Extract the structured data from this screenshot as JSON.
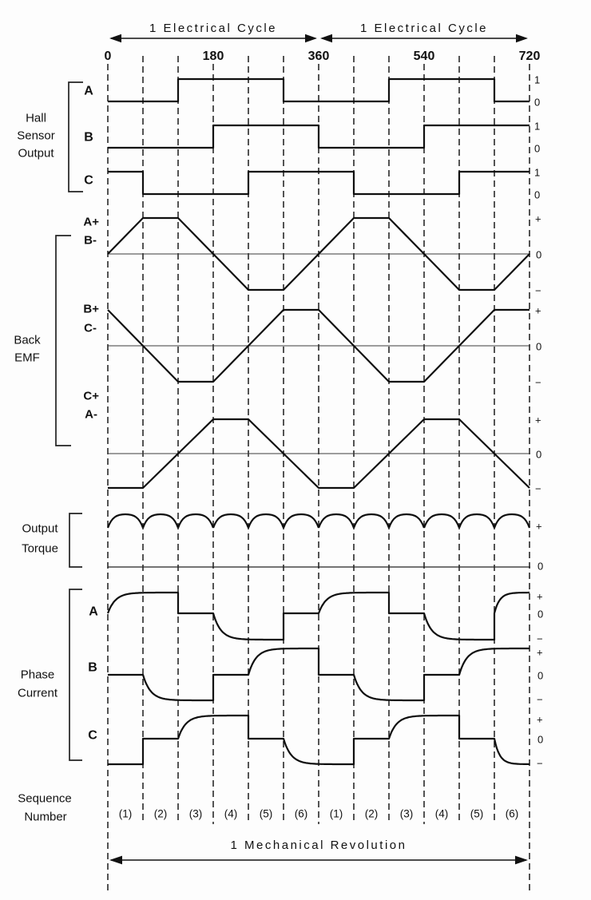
{
  "top": {
    "electrical_cycle_left": "1 Electrical Cycle",
    "electrical_cycle_right": "1 Electrical Cycle"
  },
  "axis": {
    "total_degrees": 720,
    "grid_step_degrees": 60,
    "degree_labels": [
      {
        "deg": 0,
        "text": "0"
      },
      {
        "deg": 180,
        "text": "180"
      },
      {
        "deg": 360,
        "text": "360"
      },
      {
        "deg": 540,
        "text": "540"
      },
      {
        "deg": 720,
        "text": "720"
      }
    ]
  },
  "sections": {
    "hall": {
      "title_lines": [
        "Hall",
        "Sensor",
        "Output"
      ],
      "rows": [
        {
          "id": "hall-a",
          "label": "A",
          "levels": [
            "1",
            "0"
          ],
          "wave": [
            [
              0,
              0
            ],
            [
              120,
              1
            ],
            [
              300,
              0
            ],
            [
              480,
              1
            ],
            [
              660,
              0
            ]
          ]
        },
        {
          "id": "hall-b",
          "label": "B",
          "levels": [
            "1",
            "0"
          ],
          "wave": [
            [
              0,
              0
            ],
            [
              180,
              1
            ],
            [
              360,
              0
            ],
            [
              540,
              1
            ]
          ]
        },
        {
          "id": "hall-c",
          "label": "C",
          "levels": [
            "1",
            "0"
          ],
          "wave": [
            [
              0,
              1
            ],
            [
              60,
              0
            ],
            [
              240,
              1
            ],
            [
              420,
              0
            ],
            [
              600,
              1
            ]
          ]
        }
      ]
    },
    "bemf": {
      "title_lines": [
        "Back",
        "EMF"
      ],
      "rows": [
        {
          "id": "bemf-ab",
          "label_top": "A+",
          "label_bottom": "B-",
          "levels": [
            "+",
            "0",
            "−"
          ],
          "wave": [
            [
              0,
              0
            ],
            [
              60,
              1
            ],
            [
              120,
              1
            ],
            [
              240,
              -1
            ],
            [
              300,
              -1
            ],
            [
              420,
              1
            ],
            [
              480,
              1
            ],
            [
              600,
              -1
            ],
            [
              660,
              -1
            ],
            [
              720,
              0
            ]
          ]
        },
        {
          "id": "bemf-bc",
          "label_top": "B+",
          "label_bottom": "C-",
          "levels": [
            "+",
            "0",
            "−"
          ],
          "wave": [
            [
              0,
              1
            ],
            [
              120,
              -1
            ],
            [
              180,
              -1
            ],
            [
              300,
              1
            ],
            [
              360,
              1
            ],
            [
              480,
              -1
            ],
            [
              540,
              -1
            ],
            [
              660,
              1
            ],
            [
              720,
              1
            ]
          ]
        },
        {
          "id": "bemf-ca",
          "label_top": "C+",
          "label_bottom": "A-",
          "levels": [
            "+",
            "0",
            "−"
          ],
          "wave": [
            [
              0,
              -1
            ],
            [
              60,
              -1
            ],
            [
              180,
              1
            ],
            [
              240,
              1
            ],
            [
              360,
              -1
            ],
            [
              420,
              -1
            ],
            [
              540,
              1
            ],
            [
              600,
              1
            ],
            [
              720,
              -1
            ]
          ]
        }
      ]
    },
    "torque": {
      "title_lines": [
        "Output",
        "Torque"
      ],
      "levels": [
        "+",
        "0"
      ],
      "ripple_humps": 12
    },
    "current": {
      "title_lines": [
        "Phase",
        "Current"
      ],
      "rows": [
        {
          "id": "current-a",
          "label": "A",
          "levels": [
            "+",
            "0",
            "−"
          ],
          "segments": [
            {
              "t": "exp",
              "d": [
                0,
                120
              ],
              "to": 1
            },
            {
              "t": "flat",
              "d": [
                120,
                180
              ],
              "v": 0
            },
            {
              "t": "exp",
              "d": [
                180,
                300
              ],
              "to": -1
            },
            {
              "t": "flat",
              "d": [
                300,
                360
              ],
              "v": 0
            },
            {
              "t": "exp",
              "d": [
                360,
                480
              ],
              "to": 1
            },
            {
              "t": "flat",
              "d": [
                480,
                540
              ],
              "v": 0
            },
            {
              "t": "exp",
              "d": [
                540,
                660
              ],
              "to": -1
            },
            {
              "t": "exp",
              "d": [
                660,
                720
              ],
              "to": 1
            }
          ]
        },
        {
          "id": "current-b",
          "label": "B",
          "levels": [
            "+",
            "0",
            "−"
          ],
          "segments": [
            {
              "t": "flat",
              "d": [
                0,
                60
              ],
              "v": 0
            },
            {
              "t": "exp",
              "d": [
                60,
                180
              ],
              "to": -1
            },
            {
              "t": "flat",
              "d": [
                180,
                240
              ],
              "v": 0
            },
            {
              "t": "exp",
              "d": [
                240,
                360
              ],
              "to": 1
            },
            {
              "t": "flat",
              "d": [
                360,
                420
              ],
              "v": 0
            },
            {
              "t": "exp",
              "d": [
                420,
                540
              ],
              "to": -1
            },
            {
              "t": "flat",
              "d": [
                540,
                600
              ],
              "v": 0
            },
            {
              "t": "exp",
              "d": [
                600,
                720
              ],
              "to": 1
            }
          ]
        },
        {
          "id": "current-c",
          "label": "C",
          "levels": [
            "+",
            "0",
            "−"
          ],
          "segments": [
            {
              "t": "flat",
              "d": [
                0,
                60
              ],
              "v": -1
            },
            {
              "t": "flat",
              "d": [
                60,
                120
              ],
              "v": 0
            },
            {
              "t": "exp",
              "d": [
                120,
                240
              ],
              "to": 1
            },
            {
              "t": "flat",
              "d": [
                240,
                300
              ],
              "v": 0
            },
            {
              "t": "exp",
              "d": [
                300,
                420
              ],
              "to": -1
            },
            {
              "t": "flat",
              "d": [
                420,
                480
              ],
              "v": 0
            },
            {
              "t": "exp",
              "d": [
                480,
                600
              ],
              "to": 1
            },
            {
              "t": "flat",
              "d": [
                600,
                660
              ],
              "v": 0
            },
            {
              "t": "exp",
              "d": [
                660,
                720
              ],
              "to": -1
            }
          ]
        }
      ]
    },
    "sequence": {
      "title_lines": [
        "Sequence",
        "Number"
      ],
      "labels": [
        "(1)",
        "(2)",
        "(3)",
        "(4)",
        "(5)",
        "(6)",
        "(1)",
        "(2)",
        "(3)",
        "(4)",
        "(5)",
        "(6)"
      ]
    }
  },
  "bottom": {
    "mechanical_revolution": "1 Mechanical Revolution"
  }
}
